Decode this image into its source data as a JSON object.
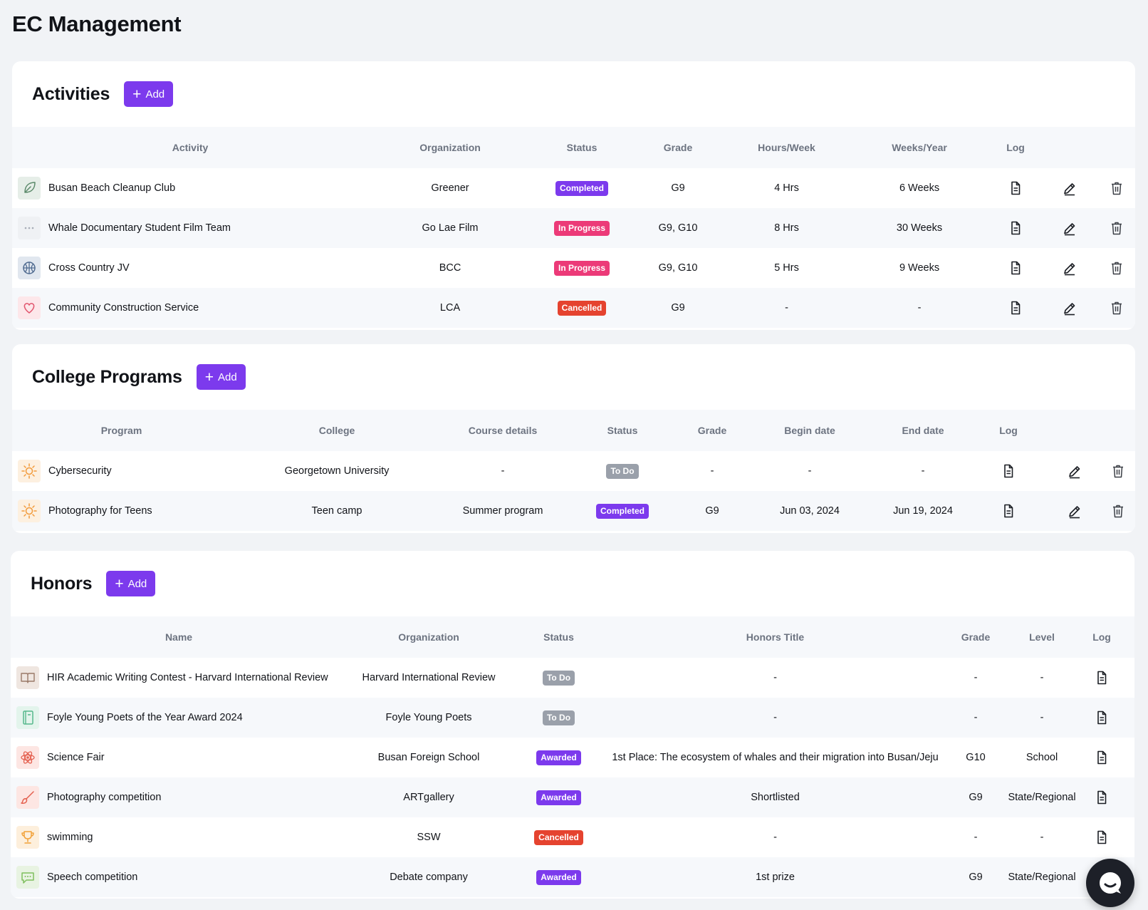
{
  "page": {
    "title": "EC Management"
  },
  "colors": {
    "accent": "#7c3aed",
    "status_completed": "#7c3aed",
    "status_awarded": "#7c3aed",
    "status_in_progress": "#ec3a78",
    "status_cancelled": "#e5432f",
    "status_todo": "#9aa0aa"
  },
  "add_label": "Add",
  "activities": {
    "title": "Activities",
    "add_label": "Add",
    "columns": [
      "Activity",
      "Organization",
      "Status",
      "Grade",
      "Hours/Week",
      "Weeks/Year",
      "Log"
    ],
    "rows": [
      {
        "icon": "leaf-icon",
        "name": "Busan Beach Cleanup Club",
        "organization": "Greener",
        "status": "Completed",
        "grade": "G9",
        "hours": "4 Hrs",
        "weeks": "6 Weeks"
      },
      {
        "icon": "more-dots-icon",
        "name": "Whale Documentary Student Film Team",
        "organization": "Go Lae Film",
        "status": "In Progress",
        "grade": "G9, G10",
        "hours": "8 Hrs",
        "weeks": "30 Weeks"
      },
      {
        "icon": "basketball-icon",
        "name": "Cross Country JV",
        "organization": "BCC",
        "status": "In Progress",
        "grade": "G9, G10",
        "hours": "5 Hrs",
        "weeks": "9 Weeks"
      },
      {
        "icon": "heart-icon",
        "name": "Community Construction Service",
        "organization": "LCA",
        "status": "Cancelled",
        "grade": "G9",
        "hours": "-",
        "weeks": "-"
      }
    ]
  },
  "college_programs": {
    "title": "College Programs",
    "add_label": "Add",
    "columns": [
      "Program",
      "College",
      "Course details",
      "Status",
      "Grade",
      "Begin date",
      "End date",
      "Log"
    ],
    "rows": [
      {
        "icon": "sun-icon",
        "name": "Cybersecurity",
        "college": "Georgetown University",
        "course": "-",
        "status": "To Do",
        "grade": "-",
        "begin": "-",
        "end": "-"
      },
      {
        "icon": "sun-icon",
        "name": "Photography for Teens",
        "college": "Teen camp",
        "course": "Summer program",
        "status": "Completed",
        "grade": "G9",
        "begin": "Jun 03, 2024",
        "end": "Jun 19, 2024"
      }
    ]
  },
  "honors": {
    "title": "Honors",
    "add_label": "Add",
    "columns": [
      "Name",
      "Organization",
      "Status",
      "Honors Title",
      "Grade",
      "Level",
      "Log"
    ],
    "rows": [
      {
        "icon": "book-icon",
        "name": "HIR Academic Writing Contest - Harvard International Review",
        "organization": "Harvard International Review",
        "status": "To Do",
        "title": "-",
        "grade": "-",
        "level": "-"
      },
      {
        "icon": "notebook-icon",
        "name": "Foyle Young Poets of the Year Award 2024",
        "organization": "Foyle Young Poets",
        "status": "To Do",
        "title": "-",
        "grade": "-",
        "level": "-"
      },
      {
        "icon": "atom-icon",
        "name": "Science Fair",
        "organization": "Busan Foreign School",
        "status": "Awarded",
        "title": "1st Place: The ecosystem of whales and their migration into Busan/Jeju",
        "grade": "G10",
        "level": "School"
      },
      {
        "icon": "brush-icon",
        "name": "Photography competition",
        "organization": "ARTgallery",
        "status": "Awarded",
        "title": "Shortlisted",
        "grade": "G9",
        "level": "State/Regional"
      },
      {
        "icon": "trophy-icon",
        "name": "swimming",
        "organization": "SSW",
        "status": "Cancelled",
        "title": "-",
        "grade": "-",
        "level": "-"
      },
      {
        "icon": "speech-bubble-icon",
        "name": "Speech competition",
        "organization": "Debate company",
        "status": "Awarded",
        "title": "1st prize",
        "grade": "G9",
        "level": "State/Regional"
      }
    ]
  }
}
